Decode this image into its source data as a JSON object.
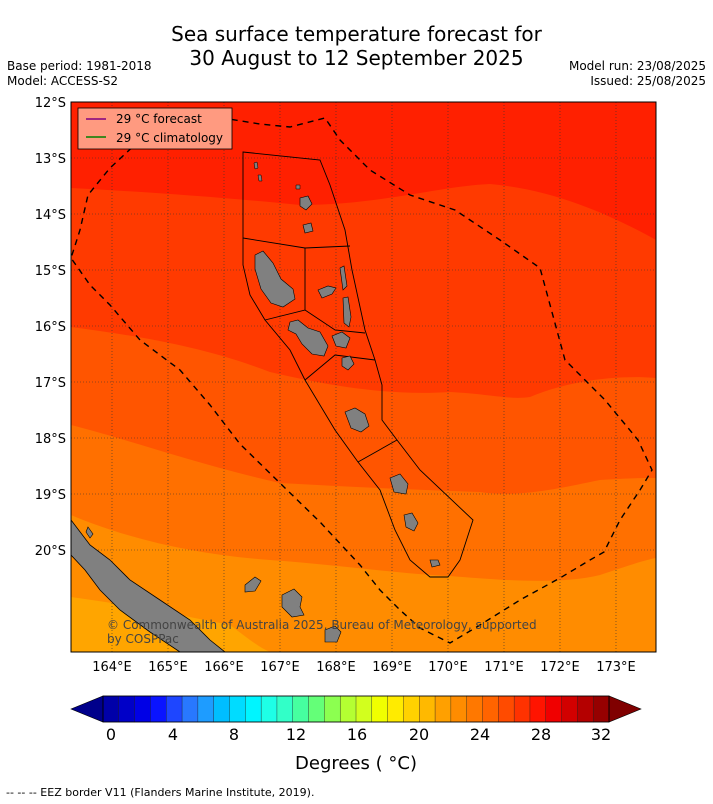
{
  "title": {
    "line1": "Sea surface temperature forecast for",
    "line2": "30 August to 12 September 2025"
  },
  "meta": {
    "base_period": "Base period: 1981-2018",
    "model": "Model: ACCESS-S2",
    "model_run": "Model run: 23/08/2025",
    "issued": "Issued: 25/08/2025"
  },
  "map": {
    "lat_labels": [
      "12°S",
      "13°S",
      "14°S",
      "15°S",
      "16°S",
      "17°S",
      "18°S",
      "19°S",
      "20°S"
    ],
    "lon_labels": [
      "164°E",
      "165°E",
      "166°E",
      "167°E",
      "168°E",
      "169°E",
      "170°E",
      "171°E",
      "172°E",
      "173°E"
    ],
    "legend": {
      "forecast_label": "29 °C  forecast",
      "forecast_color": "#800080",
      "climatology_label": "29 °C  climatology",
      "climatology_color": "#008000"
    },
    "copyright_line1": "© Commonwealth of Australia 2025, Bureau of Meteorology, supported",
    "copyright_line2": "by COSPPac",
    "land_color": "#808080",
    "temperature_bands": [
      "#ff2000",
      "#ff3a00",
      "#ff5500",
      "#ff7000",
      "#ff8c00",
      "#ffa500"
    ]
  },
  "colorbar": {
    "tick_labels": [
      "0",
      "4",
      "8",
      "12",
      "16",
      "20",
      "24",
      "28",
      "32"
    ],
    "label": "Degrees ( °C)",
    "colors": [
      "#00008b",
      "#0000a8",
      "#0000c8",
      "#0000e6",
      "#0a14ff",
      "#1e46ff",
      "#2878ff",
      "#1e9cff",
      "#00beff",
      "#00dcff",
      "#00f5ff",
      "#1effe6",
      "#32ffc8",
      "#46ffa0",
      "#64ff78",
      "#8cff50",
      "#b4ff32",
      "#d2ff1e",
      "#f0ff00",
      "#ffeb00",
      "#ffd200",
      "#ffb900",
      "#ffa000",
      "#ff8c00",
      "#ff7800",
      "#ff6400",
      "#ff4b00",
      "#ff3200",
      "#ff1400",
      "#f00000",
      "#d20000",
      "#b40000",
      "#960000",
      "#800000"
    ]
  },
  "footer": "--  --  -- EEZ border V11 (Flanders Marine Institute, 2019)."
}
